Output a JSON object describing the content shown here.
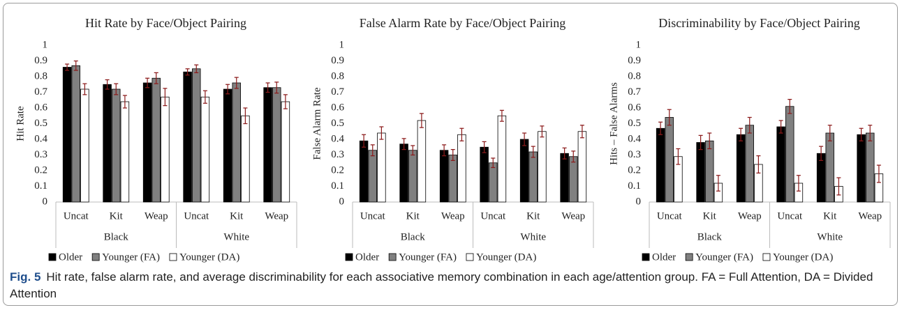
{
  "chart_data": [
    {
      "type": "bar",
      "title": "Hit Rate by Face/Object Pairing",
      "y_label": "Hit Rate",
      "groups": [
        {
          "label": "Black",
          "categories": [
            "Uncat",
            "Kit",
            "Weap"
          ]
        },
        {
          "label": "White",
          "categories": [
            "Uncat",
            "Kit",
            "Weap"
          ]
        }
      ],
      "ylim": [
        0,
        1
      ],
      "yticks": [
        0,
        0.1,
        0.2,
        0.3,
        0.4,
        0.5,
        0.6,
        0.7,
        0.8,
        0.9,
        1
      ],
      "legend": "bottom",
      "series": [
        {
          "name": "Older",
          "color": "#000000",
          "values": [
            0.86,
            0.75,
            0.76,
            0.83,
            0.72,
            0.73
          ],
          "errors": [
            0.02,
            0.03,
            0.03,
            0.02,
            0.03,
            0.03
          ]
        },
        {
          "name": "Younger (FA)",
          "color": "#808080",
          "values": [
            0.87,
            0.72,
            0.79,
            0.85,
            0.76,
            0.73
          ],
          "errors": [
            0.03,
            0.035,
            0.035,
            0.025,
            0.035,
            0.035
          ]
        },
        {
          "name": "Younger (DA)",
          "color": "#ffffff",
          "values": [
            0.72,
            0.64,
            0.67,
            0.67,
            0.55,
            0.64
          ],
          "errors": [
            0.035,
            0.04,
            0.055,
            0.04,
            0.05,
            0.045
          ]
        }
      ]
    },
    {
      "type": "bar",
      "title": "False Alarm Rate by Face/Object Pairing",
      "y_label": "False Alarm Rate",
      "groups": [
        {
          "label": "Black",
          "categories": [
            "Uncat",
            "Kit",
            "Weap"
          ]
        },
        {
          "label": "White",
          "categories": [
            "Uncat",
            "Kit",
            "Weap"
          ]
        }
      ],
      "ylim": [
        0,
        1
      ],
      "yticks": [
        0,
        0.1,
        0.2,
        0.3,
        0.4,
        0.5,
        0.6,
        0.7,
        0.8,
        0.9,
        1
      ],
      "legend": "bottom",
      "series": [
        {
          "name": "Older",
          "color": "#000000",
          "values": [
            0.39,
            0.37,
            0.33,
            0.35,
            0.4,
            0.31
          ],
          "errors": [
            0.04,
            0.035,
            0.035,
            0.035,
            0.04,
            0.035
          ]
        },
        {
          "name": "Younger (FA)",
          "color": "#808080",
          "values": [
            0.33,
            0.33,
            0.3,
            0.25,
            0.32,
            0.29
          ],
          "errors": [
            0.035,
            0.03,
            0.035,
            0.03,
            0.035,
            0.035
          ]
        },
        {
          "name": "Younger (DA)",
          "color": "#ffffff",
          "values": [
            0.44,
            0.52,
            0.43,
            0.55,
            0.45,
            0.45
          ],
          "errors": [
            0.04,
            0.045,
            0.04,
            0.035,
            0.035,
            0.04
          ]
        }
      ]
    },
    {
      "type": "bar",
      "title": "Discriminability by Face/Object Pairing",
      "y_label": "Hits – False Alarms",
      "groups": [
        {
          "label": "Black",
          "categories": [
            "Uncat",
            "Kit",
            "Weap"
          ]
        },
        {
          "label": "White",
          "categories": [
            "Uncat",
            "Kit",
            "Weap"
          ]
        }
      ],
      "ylim": [
        0,
        1
      ],
      "yticks": [
        0,
        0.1,
        0.2,
        0.3,
        0.4,
        0.5,
        0.6,
        0.7,
        0.8,
        0.9,
        1
      ],
      "legend": "bottom",
      "series": [
        {
          "name": "Older",
          "color": "#000000",
          "values": [
            0.47,
            0.38,
            0.43,
            0.48,
            0.31,
            0.43
          ],
          "errors": [
            0.04,
            0.045,
            0.04,
            0.04,
            0.045,
            0.04
          ]
        },
        {
          "name": "Younger (FA)",
          "color": "#808080",
          "values": [
            0.54,
            0.39,
            0.49,
            0.61,
            0.44,
            0.44
          ],
          "errors": [
            0.05,
            0.05,
            0.05,
            0.045,
            0.05,
            0.05
          ]
        },
        {
          "name": "Younger (DA)",
          "color": "#ffffff",
          "values": [
            0.29,
            0.12,
            0.24,
            0.12,
            0.1,
            0.18
          ],
          "errors": [
            0.05,
            0.05,
            0.055,
            0.05,
            0.055,
            0.055
          ]
        }
      ]
    }
  ],
  "caption": {
    "label": "Fig. 5",
    "text": "Hit rate, false alarm rate, and average discriminability for each associative memory combination in each age/attention group. FA = Full Attention, DA = Divided Attention"
  }
}
